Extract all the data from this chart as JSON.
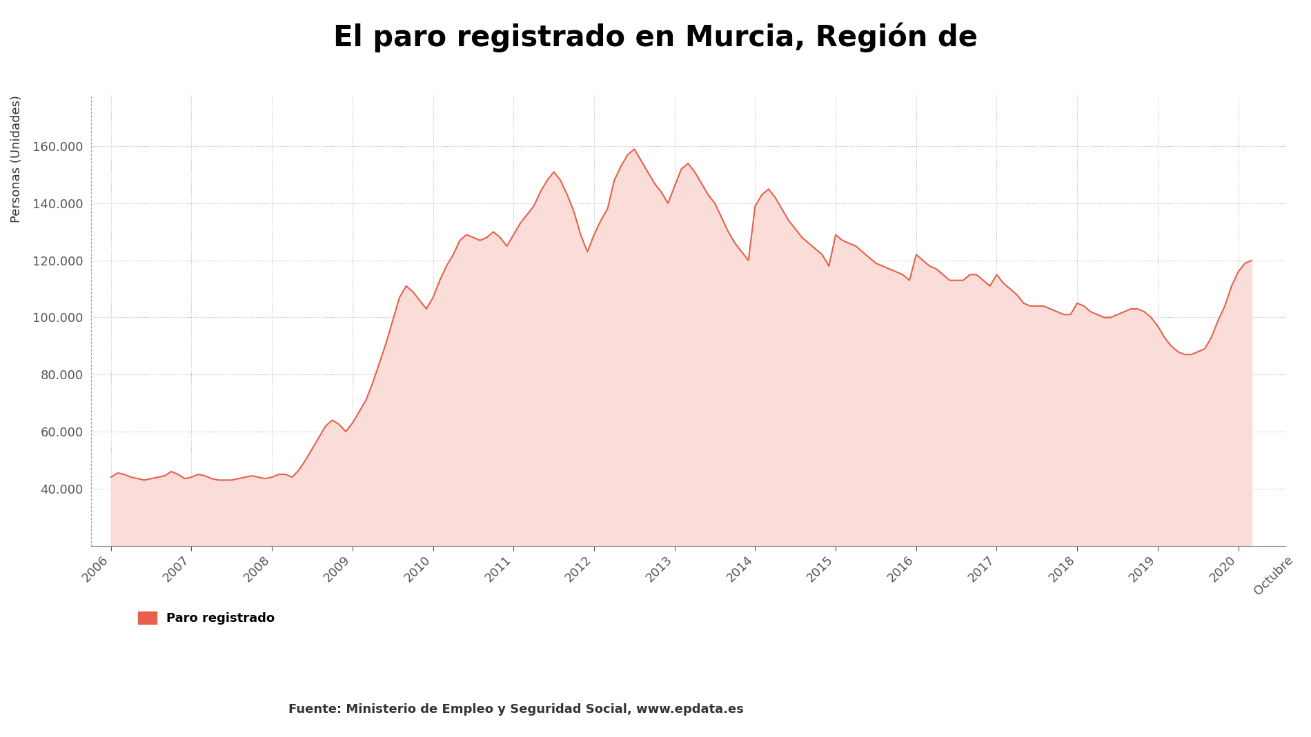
{
  "title": "El paro registrado en Murcia, Región de",
  "ylabel": "Personas (Unidades)",
  "line_color": "#E8604A",
  "fill_color": "#FADDD8",
  "background_color": "#FFFFFF",
  "ylim": [
    20000,
    178000
  ],
  "yticks": [
    40000,
    60000,
    80000,
    100000,
    120000,
    140000,
    160000
  ],
  "legend_label": "Paro registrado",
  "source_text": "Fuente: Ministerio de Empleo y Seguridad Social, www.epdata.es",
  "title_fontsize": 30,
  "ylabel_fontsize": 13,
  "tick_fontsize": 13,
  "legend_fontsize": 13,
  "values": [
    44000,
    45500,
    45000,
    44000,
    43500,
    43000,
    43500,
    44000,
    44500,
    46000,
    45000,
    43500,
    44000,
    45000,
    44500,
    43500,
    43000,
    43000,
    43000,
    43500,
    44000,
    44500,
    44000,
    43500,
    44000,
    45000,
    45000,
    44000,
    46500,
    50000,
    54000,
    58000,
    62000,
    64000,
    62500,
    60000,
    63000,
    67000,
    71000,
    77000,
    84000,
    91000,
    99000,
    107000,
    111000,
    109000,
    106000,
    103000,
    107000,
    113000,
    118000,
    122000,
    127000,
    129000,
    128000,
    127000,
    128000,
    130000,
    128000,
    125000,
    129000,
    133000,
    136000,
    139000,
    144000,
    148000,
    151000,
    148000,
    143000,
    137000,
    129000,
    123000,
    129000,
    134000,
    138000,
    148000,
    153000,
    157000,
    159000,
    155000,
    151000,
    147000,
    144000,
    140000,
    146000,
    152000,
    154000,
    151000,
    147000,
    143000,
    140000,
    135000,
    130000,
    126000,
    123000,
    120000,
    139000,
    143000,
    145000,
    142000,
    138000,
    134000,
    131000,
    128000,
    126000,
    124000,
    122000,
    118000,
    129000,
    127000,
    126000,
    125000,
    123000,
    121000,
    119000,
    118000,
    117000,
    116000,
    115000,
    113000,
    122000,
    120000,
    118000,
    117000,
    115000,
    113000,
    113000,
    113000,
    115000,
    115000,
    113000,
    111000,
    115000,
    112000,
    110000,
    108000,
    105000,
    104000,
    104000,
    104000,
    103000,
    102000,
    101000,
    101000,
    105000,
    104000,
    102000,
    101000,
    100000,
    100000,
    101000,
    102000,
    103000,
    103000,
    102000,
    100000,
    97000,
    93000,
    90000,
    88000,
    87000,
    87000,
    88000,
    89000,
    93000,
    99000,
    104000,
    111000,
    116000,
    119000,
    120000
  ],
  "x_tick_positions": [
    0,
    12,
    24,
    36,
    48,
    60,
    72,
    84,
    96,
    108,
    120,
    132,
    144,
    156,
    168
  ],
  "x_tick_labels": [
    "2006",
    "2007",
    "2008",
    "2009",
    "2010",
    "2011",
    "2012",
    "2013",
    "2014",
    "2015",
    "2016",
    "2017",
    "2018",
    "2019",
    "2020"
  ],
  "last_label": "Octubre"
}
